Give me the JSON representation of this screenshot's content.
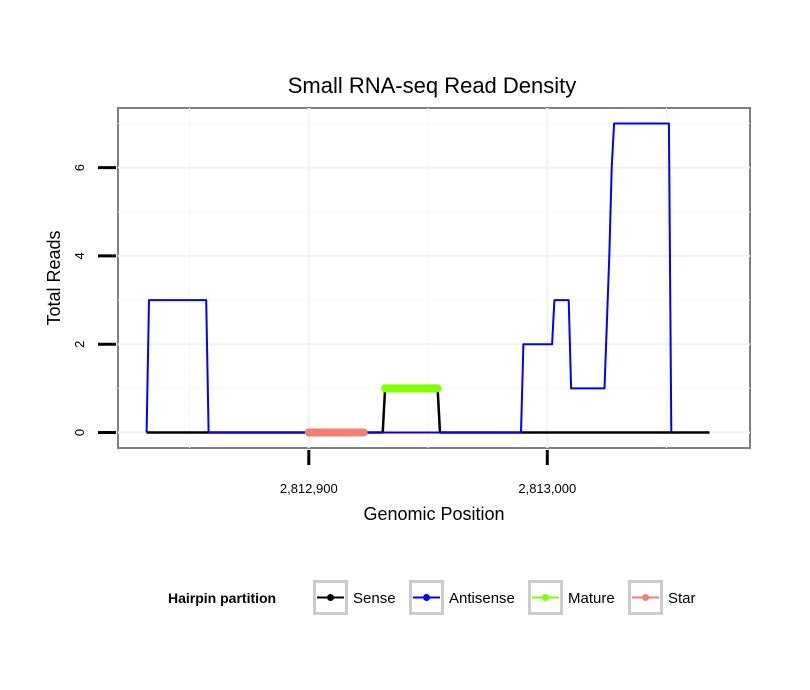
{
  "chart_data": {
    "type": "line",
    "title": "Small RNA-seq Read Density",
    "xlabel": "Genomic Position",
    "ylabel": "Total Reads",
    "xlim": [
      2812820,
      2813085
    ],
    "ylim": [
      -0.35,
      7.35
    ],
    "x_ticks": [
      {
        "value": 2812900,
        "label": "2,812,900"
      },
      {
        "value": 2813000,
        "label": "2,813,000"
      }
    ],
    "y_ticks": [
      {
        "value": 0,
        "label": "0"
      },
      {
        "value": 2,
        "label": "2"
      },
      {
        "value": 4,
        "label": "4"
      },
      {
        "value": 6,
        "label": "6"
      }
    ],
    "grid": true,
    "legend": {
      "title": "Hairpin partition",
      "position": "bottom",
      "entries": [
        "Sense",
        "Antisense",
        "Mature",
        "Star"
      ]
    },
    "series": [
      {
        "name": "Sense",
        "color": "#000000",
        "width": 2.5,
        "points": [
          [
            2812832,
            0
          ],
          [
            2812917,
            0
          ],
          [
            2812931,
            0
          ],
          [
            2812932,
            1
          ],
          [
            2812954,
            1
          ],
          [
            2812955,
            0
          ],
          [
            2813068,
            0
          ]
        ]
      },
      {
        "name": "Antisense",
        "color": "#0000ff",
        "width": 2,
        "points": [
          [
            2812832,
            0
          ],
          [
            2812833,
            3
          ],
          [
            2812857,
            3
          ],
          [
            2812858,
            0
          ],
          [
            2812954,
            0
          ],
          [
            2812958,
            0
          ],
          [
            2812989,
            0
          ],
          [
            2812990,
            2
          ],
          [
            2813002,
            2
          ],
          [
            2813003,
            3
          ],
          [
            2813009,
            3
          ],
          [
            2813010,
            1
          ],
          [
            2813024,
            1
          ],
          [
            2813026,
            4
          ],
          [
            2813027,
            6
          ],
          [
            2813028,
            7
          ],
          [
            2813051,
            7
          ],
          [
            2813052,
            0
          ]
        ]
      },
      {
        "name": "Mature",
        "color": "#7fff00",
        "width": 8,
        "points": [
          [
            2812932,
            1
          ],
          [
            2812954,
            1
          ]
        ]
      },
      {
        "name": "Star",
        "color": "#f08070",
        "width": 8,
        "points": [
          [
            2812900,
            0
          ],
          [
            2812923,
            0
          ]
        ]
      }
    ]
  }
}
